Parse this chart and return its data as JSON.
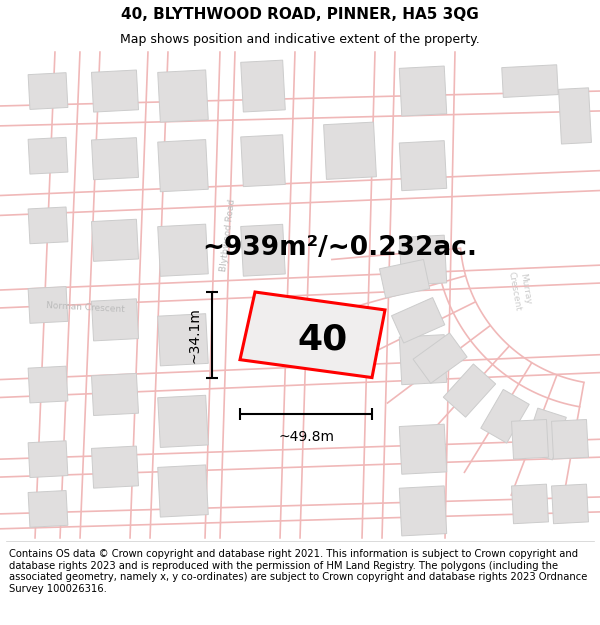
{
  "title": "40, BLYTHWOOD ROAD, PINNER, HA5 3QG",
  "subtitle": "Map shows position and indicative extent of the property.",
  "area_label": "~939m²/~0.232ac.",
  "width_label": "~49.8m",
  "height_label": "~34.1m",
  "property_number": "40",
  "footer": "Contains OS data © Crown copyright and database right 2021. This information is subject to Crown copyright and database rights 2023 and is reproduced with the permission of HM Land Registry. The polygons (including the associated geometry, namely x, y co-ordinates) are subject to Crown copyright and database rights 2023 Ordnance Survey 100026316.",
  "bg_color": "#ffffff",
  "road_line_color": "#f0b8b8",
  "building_face_color": "#e0dede",
  "building_edge_color": "#cccccc",
  "property_fill": "#f0eeee",
  "property_edge": "red",
  "street_label_color": "#bbbbbb",
  "murray_crescent_color": "#cccccc",
  "title_fontsize": 11,
  "subtitle_fontsize": 9,
  "area_fontsize": 19,
  "number_fontsize": 26,
  "dim_fontsize": 10,
  "footer_fontsize": 7.2,
  "road_lw": 1.2,
  "prop_lw": 2.2
}
